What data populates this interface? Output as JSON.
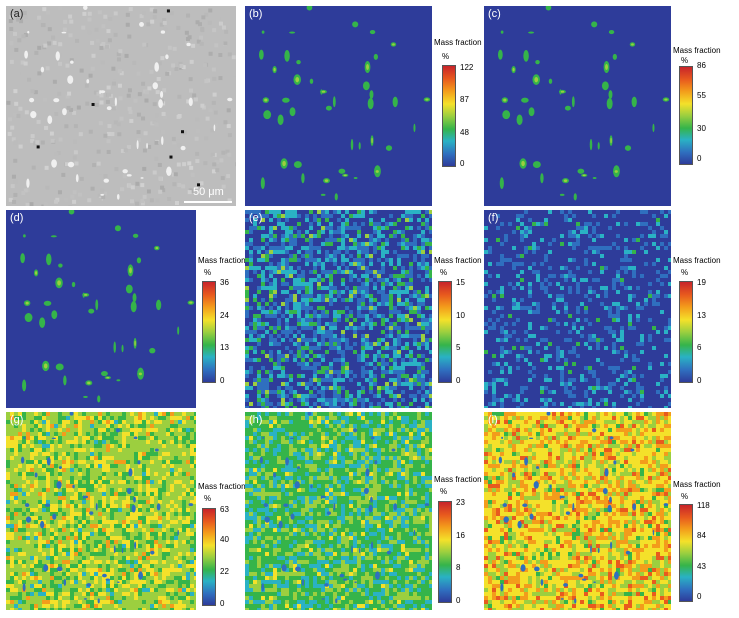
{
  "figure": {
    "panels": [
      {
        "id": "a",
        "label": "(a)",
        "kind": "sem",
        "scale_bar": "50 μm"
      },
      {
        "id": "b",
        "label": "(b)",
        "kind": "map",
        "style": "sparse",
        "colorbar": {
          "title": "Mass fraction",
          "unit": "%",
          "ticks": [
            "122",
            "87",
            "48",
            "0"
          ]
        }
      },
      {
        "id": "c",
        "label": "(c)",
        "kind": "map",
        "style": "sparse",
        "colorbar": {
          "title": "Mass fraction",
          "unit": "%",
          "ticks": [
            "86",
            "55",
            "30",
            "0"
          ]
        }
      },
      {
        "id": "d",
        "label": "(d)",
        "kind": "map",
        "style": "sparse",
        "colorbar": {
          "title": "Mass fraction",
          "unit": "%",
          "ticks": [
            "36",
            "24",
            "13",
            "0"
          ]
        }
      },
      {
        "id": "e",
        "label": "(e)",
        "kind": "map",
        "style": "noise-high",
        "colorbar": {
          "title": "Mass fraction",
          "unit": "%",
          "ticks": [
            "15",
            "10",
            "5",
            "0"
          ]
        }
      },
      {
        "id": "f",
        "label": "(f)",
        "kind": "map",
        "style": "noise-low",
        "colorbar": {
          "title": "Mass fraction",
          "unit": "%",
          "ticks": [
            "19",
            "13",
            "6",
            "0"
          ]
        }
      },
      {
        "id": "g",
        "label": "(g)",
        "kind": "map",
        "style": "matrix-yellow",
        "colorbar": {
          "title": "Mass fraction",
          "unit": "%",
          "ticks": [
            "63",
            "40",
            "22",
            "0"
          ]
        }
      },
      {
        "id": "h",
        "label": "(h)",
        "kind": "map",
        "style": "matrix-green",
        "colorbar": {
          "title": "Mass fraction",
          "unit": "%",
          "ticks": [
            "23",
            "16",
            "8",
            "0"
          ]
        }
      },
      {
        "id": "i",
        "label": "(i)",
        "kind": "map",
        "style": "matrix-yellow-red",
        "colorbar": {
          "title": "Mass fraction",
          "unit": "%",
          "ticks": [
            "118",
            "84",
            "43",
            "0"
          ]
        }
      }
    ],
    "colormap": [
      "#c8242a",
      "#e85a1e",
      "#f39c1b",
      "#f4e12a",
      "#9ccf3f",
      "#35b44a",
      "#2ab2c4",
      "#2f6fbf",
      "#2e3c9a"
    ]
  }
}
